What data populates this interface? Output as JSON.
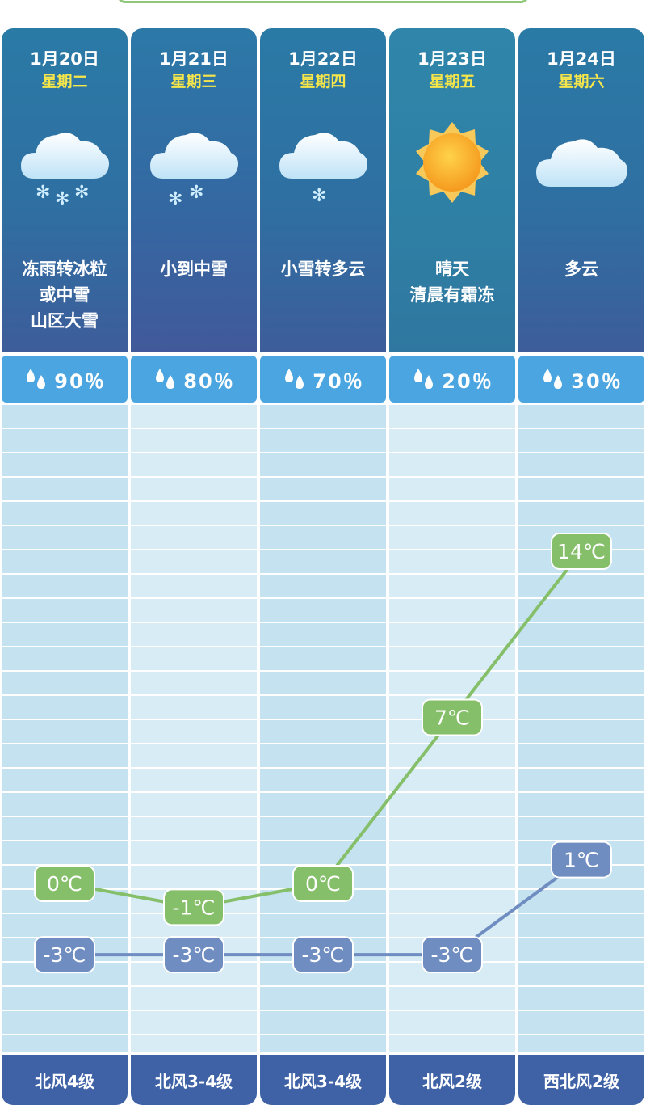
{
  "colors": {
    "high_line": "#86bf6a",
    "low_line": "#6f8dc1",
    "precip_bar": "#4aa5e0",
    "wind_bar": "#3f62a6",
    "weekday_text": "#f6e64a"
  },
  "days": [
    {
      "date": "1月20日",
      "weekday": "星期二",
      "icon": "snow-cloud-heavy-icon",
      "condition": [
        "冻雨转冰粒",
        "或中雪",
        "山区大雪"
      ],
      "precip": "90％",
      "wind": "北风4级"
    },
    {
      "date": "1月21日",
      "weekday": "星期三",
      "icon": "snow-cloud-moderate-icon",
      "condition": [
        "小到中雪"
      ],
      "precip": "80％",
      "wind": "北风3-4级"
    },
    {
      "date": "1月22日",
      "weekday": "星期四",
      "icon": "snow-cloud-light-icon",
      "condition": [
        "小雪转多云"
      ],
      "precip": "70％",
      "wind": "北风3-4级"
    },
    {
      "date": "1月23日",
      "weekday": "星期五",
      "icon": "sun-icon",
      "condition": [
        "晴天",
        "清晨有霜冻"
      ],
      "precip": "20％",
      "wind": "北风2级"
    },
    {
      "date": "1月24日",
      "weekday": "星期六",
      "icon": "cloud-icon",
      "condition": [
        "多云"
      ],
      "precip": "30％",
      "wind": "西北风2级"
    }
  ],
  "chart_data": {
    "type": "line",
    "categories": [
      "1月20日",
      "1月21日",
      "1月22日",
      "1月23日",
      "1月24日"
    ],
    "series": [
      {
        "values": [
          0,
          -1,
          0,
          7,
          14
        ],
        "labels": [
          "0℃",
          "-1℃",
          "0℃",
          "7℃",
          "14℃"
        ],
        "color": "#86bf6a"
      },
      {
        "values": [
          -3,
          -3,
          -3,
          -3,
          1
        ],
        "labels": [
          "-3℃",
          "-3℃",
          "-3℃",
          "-3℃",
          "1℃"
        ],
        "color": "#6f8dc1"
      }
    ],
    "unit": "℃",
    "ylim": [
      -6,
      19
    ],
    "grid": true,
    "legend": "none"
  }
}
